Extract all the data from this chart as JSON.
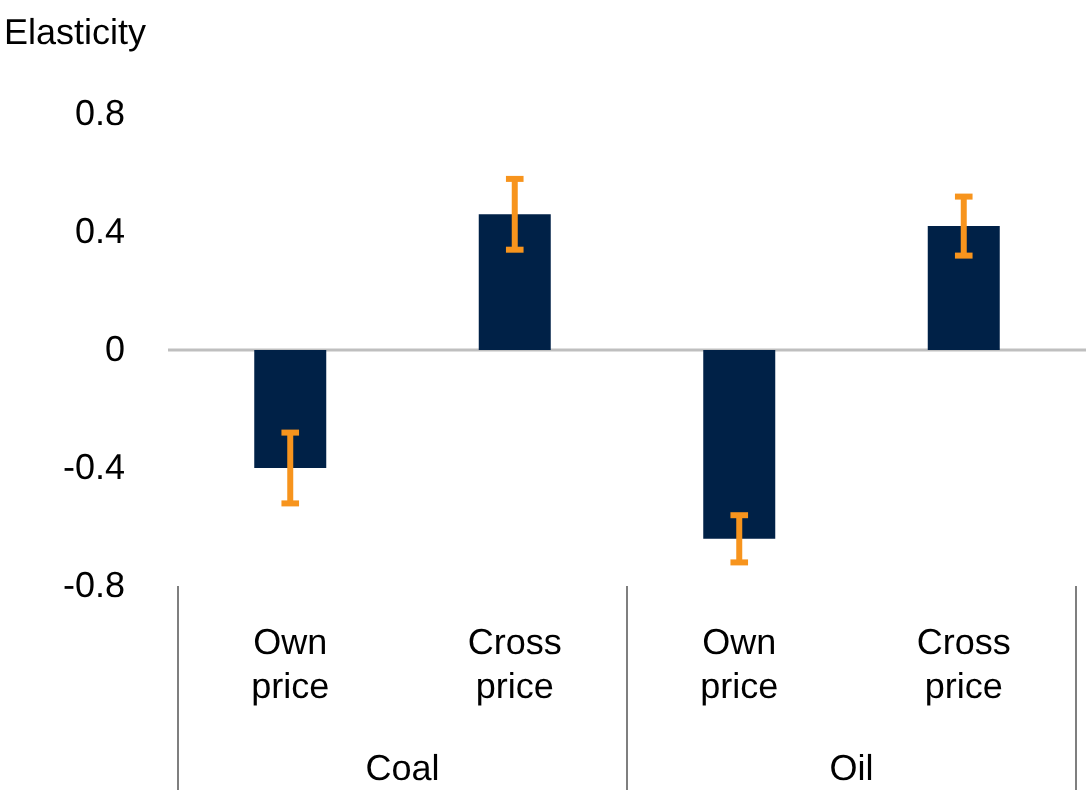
{
  "chart_data": {
    "type": "bar",
    "ylabel": "Elasticity",
    "categories": [
      "Own price",
      "Cross price",
      "Own price",
      "Cross price"
    ],
    "values": [
      -0.4,
      0.46,
      -0.64,
      0.42
    ],
    "color": "#002147",
    "errors": [
      [
        -0.52,
        -0.28
      ],
      [
        0.34,
        0.58
      ],
      [
        -0.72,
        -0.56
      ],
      [
        0.32,
        0.52
      ]
    ],
    "ylim": [
      -0.8,
      0.8
    ],
    "yticks": [
      -0.8,
      -0.4,
      0,
      0.4,
      0.8
    ],
    "grid": false,
    "ref_lines": [
      {
        "axis": "y",
        "value": 0,
        "color": "#bfbfbf",
        "line_style": "solid"
      }
    ],
    "annotations": [
      "Coal",
      "Oil"
    ]
  }
}
